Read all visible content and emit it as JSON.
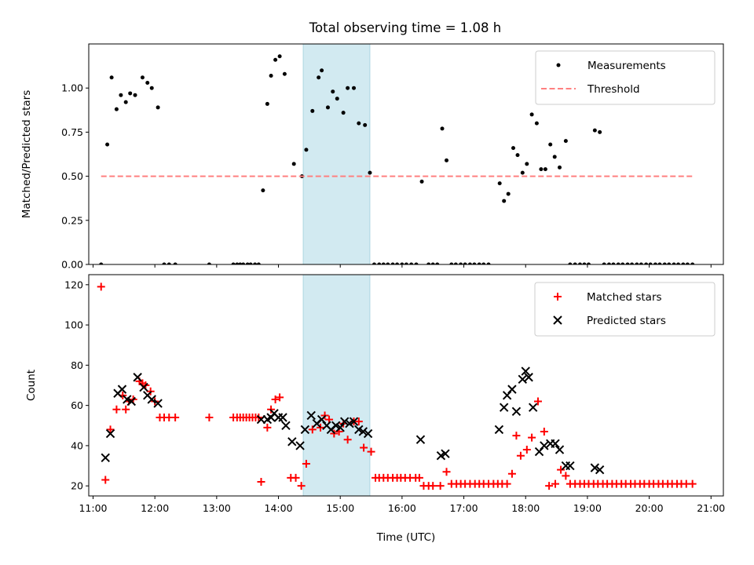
{
  "title": "Total observing time = 1.08 h",
  "chart_data": [
    {
      "type": "scatter",
      "ylabel": "Matched/Predicted stars",
      "xlim": [
        10.93,
        21.2
      ],
      "ylim": [
        0,
        1.25
      ],
      "yticks": [
        0.0,
        0.25,
        0.5,
        0.75,
        1.0
      ],
      "ytick_labels": [
        "0.00",
        "0.25",
        "0.50",
        "0.75",
        "1.00"
      ],
      "highlight_span": [
        14.4,
        15.48
      ],
      "highlight_color": "#add8e6",
      "legend_position": "upper right",
      "series": [
        {
          "name": "Measurements",
          "kind": "scatter",
          "marker": "dot",
          "color": "#000000",
          "x": [
            11.13,
            11.23,
            11.3,
            11.38,
            11.45,
            11.53,
            11.6,
            11.68,
            11.8,
            11.88,
            11.95,
            12.05,
            12.15,
            12.23,
            12.33,
            12.88,
            13.27,
            13.33,
            13.38,
            13.43,
            13.5,
            13.55,
            13.62,
            13.68,
            13.75,
            13.82,
            13.88,
            13.95,
            14.02,
            14.1,
            14.25,
            14.38,
            14.45,
            14.55,
            14.65,
            14.7,
            14.8,
            14.88,
            14.95,
            15.05,
            15.12,
            15.22,
            15.3,
            15.4,
            15.48,
            15.55,
            15.63,
            15.7,
            15.77,
            15.85,
            15.92,
            16.0,
            16.07,
            16.15,
            16.23,
            16.32,
            16.43,
            16.5,
            16.57,
            16.65,
            16.72,
            16.8,
            16.87,
            16.95,
            17.02,
            17.1,
            17.17,
            17.25,
            17.32,
            17.4,
            17.58,
            17.65,
            17.72,
            17.8,
            17.87,
            17.95,
            18.02,
            18.1,
            18.18,
            18.25,
            18.32,
            18.4,
            18.47,
            18.55,
            18.65,
            18.72,
            18.8,
            18.88,
            18.95,
            19.02,
            19.12,
            19.2,
            19.27,
            19.35,
            19.42,
            19.5,
            19.57,
            19.65,
            19.72,
            19.8,
            19.87,
            19.95,
            20.02,
            20.1,
            20.17,
            20.25,
            20.32,
            20.4,
            20.47,
            20.55,
            20.62,
            20.7
          ],
          "y": [
            0.0,
            0.68,
            1.06,
            0.88,
            0.96,
            0.92,
            0.97,
            0.96,
            1.06,
            1.03,
            1.0,
            0.89,
            0.0,
            0.0,
            0.0,
            0.0,
            0.0,
            0.0,
            0.0,
            0.0,
            0.0,
            0.0,
            0.0,
            0.0,
            0.42,
            0.91,
            1.07,
            1.16,
            1.18,
            1.08,
            0.57,
            0.5,
            0.65,
            0.87,
            1.06,
            1.1,
            0.89,
            0.98,
            0.94,
            0.86,
            1.0,
            1.0,
            0.8,
            0.79,
            0.52,
            0.0,
            0.0,
            0.0,
            0.0,
            0.0,
            0.0,
            0.0,
            0.0,
            0.0,
            0.0,
            0.47,
            0.0,
            0.0,
            0.0,
            0.77,
            0.59,
            0.0,
            0.0,
            0.0,
            0.0,
            0.0,
            0.0,
            0.0,
            0.0,
            0.0,
            0.46,
            0.36,
            0.4,
            0.66,
            0.62,
            0.52,
            0.57,
            0.85,
            0.8,
            0.54,
            0.54,
            0.68,
            0.61,
            0.55,
            0.7,
            0.0,
            0.0,
            0.0,
            0.0,
            0.0,
            0.76,
            0.75,
            0.0,
            0.0,
            0.0,
            0.0,
            0.0,
            0.0,
            0.0,
            0.0,
            0.0,
            0.0,
            0.0,
            0.0,
            0.0,
            0.0,
            0.0,
            0.0,
            0.0,
            0.0,
            0.0,
            0.0
          ]
        },
        {
          "name": "Threshold",
          "kind": "line",
          "style": "dashed",
          "color": "#ff8080",
          "x": [
            11.13,
            20.72
          ],
          "y": [
            0.5,
            0.5
          ]
        }
      ]
    },
    {
      "type": "scatter",
      "xlabel": "Time (UTC)",
      "ylabel": "Count",
      "xlim": [
        10.93,
        21.2
      ],
      "ylim": [
        15,
        125
      ],
      "xticks": [
        11,
        12,
        13,
        14,
        15,
        16,
        17,
        18,
        19,
        20,
        21
      ],
      "xtick_labels": [
        "11:00",
        "12:00",
        "13:00",
        "14:00",
        "15:00",
        "16:00",
        "17:00",
        "18:00",
        "19:00",
        "20:00",
        "21:00"
      ],
      "yticks": [
        20,
        40,
        60,
        80,
        100,
        120
      ],
      "ytick_labels": [
        "20",
        "40",
        "60",
        "80",
        "100",
        "120"
      ],
      "highlight_span": [
        14.4,
        15.48
      ],
      "highlight_color": "#add8e6",
      "legend_position": "upper right",
      "series": [
        {
          "name": "Matched stars",
          "kind": "scatter",
          "marker": "plus",
          "color": "#ff0000",
          "x": [
            11.13,
            11.2,
            11.28,
            11.38,
            11.48,
            11.53,
            11.58,
            11.65,
            11.75,
            11.8,
            11.85,
            11.93,
            12.0,
            12.08,
            12.15,
            12.23,
            12.33,
            12.88,
            13.27,
            13.33,
            13.38,
            13.43,
            13.48,
            13.53,
            13.58,
            13.63,
            13.68,
            13.72,
            13.82,
            13.88,
            13.95,
            14.02,
            14.2,
            14.28,
            14.37,
            14.45,
            14.55,
            14.68,
            14.75,
            14.82,
            14.9,
            14.98,
            15.05,
            15.12,
            15.22,
            15.3,
            15.38,
            15.5,
            15.57,
            15.63,
            15.7,
            15.77,
            15.85,
            15.92,
            15.98,
            16.05,
            16.13,
            16.22,
            16.28,
            16.35,
            16.43,
            16.5,
            16.62,
            16.72,
            16.8,
            16.88,
            16.95,
            17.02,
            17.1,
            17.18,
            17.25,
            17.32,
            17.4,
            17.48,
            17.55,
            17.62,
            17.7,
            17.78,
            17.85,
            17.92,
            18.02,
            18.1,
            18.2,
            18.3,
            18.38,
            18.48,
            18.57,
            18.65,
            18.72,
            18.8,
            18.88,
            18.95,
            19.02,
            19.1,
            19.17,
            19.25,
            19.32,
            19.4,
            19.47,
            19.55,
            19.62,
            19.7,
            19.77,
            19.85,
            19.92,
            20.0,
            20.07,
            20.15,
            20.22,
            20.3,
            20.37,
            20.45,
            20.52,
            20.6,
            20.7
          ],
          "y": [
            119,
            23,
            48,
            58,
            65,
            58,
            62,
            63,
            72,
            71,
            70,
            67,
            62,
            54,
            54,
            54,
            54,
            54,
            54,
            54,
            54,
            54,
            54,
            54,
            54,
            54,
            54,
            22,
            49,
            58,
            63,
            64,
            24,
            24,
            20,
            31,
            48,
            49,
            55,
            53,
            46,
            47,
            51,
            43,
            52,
            52,
            39,
            37,
            24,
            24,
            24,
            24,
            24,
            24,
            24,
            24,
            24,
            24,
            24,
            20,
            20,
            20,
            20,
            27,
            21,
            21,
            21,
            21,
            21,
            21,
            21,
            21,
            21,
            21,
            21,
            21,
            21,
            26,
            45,
            35,
            38,
            44,
            62,
            47,
            20,
            21,
            28,
            25,
            21,
            21,
            21,
            21,
            21,
            21,
            21,
            21,
            21,
            21,
            21,
            21,
            21,
            21,
            21,
            21,
            21,
            21,
            21,
            21,
            21,
            21,
            21,
            21,
            21,
            21,
            21
          ]
        },
        {
          "name": "Predicted stars",
          "kind": "scatter",
          "marker": "x",
          "color": "#000000",
          "x": [
            11.2,
            11.28,
            11.4,
            11.47,
            11.55,
            11.62,
            11.72,
            11.82,
            11.88,
            11.95,
            12.05,
            13.72,
            13.82,
            13.88,
            13.93,
            14.0,
            14.07,
            14.12,
            14.22,
            14.35,
            14.43,
            14.53,
            14.62,
            14.7,
            14.78,
            14.85,
            14.93,
            15.0,
            15.07,
            15.15,
            15.22,
            15.3,
            15.37,
            15.45,
            16.3,
            16.63,
            16.7,
            17.57,
            17.65,
            17.7,
            17.78,
            17.85,
            17.95,
            18.0,
            18.05,
            18.12,
            18.22,
            18.3,
            18.4,
            18.48,
            18.55,
            18.65,
            18.72,
            19.12,
            19.2
          ],
          "y": [
            34,
            46,
            66,
            68,
            63,
            62,
            74,
            69,
            65,
            63,
            61,
            53,
            53,
            54,
            56,
            54,
            54,
            50,
            42,
            40,
            48,
            55,
            51,
            53,
            50,
            48,
            50,
            49,
            52,
            51,
            52,
            48,
            47,
            46,
            43,
            35,
            36,
            48,
            59,
            65,
            68,
            57,
            73,
            77,
            74,
            59,
            37,
            40,
            41,
            41,
            38,
            30,
            30,
            29,
            28
          ]
        }
      ]
    }
  ]
}
